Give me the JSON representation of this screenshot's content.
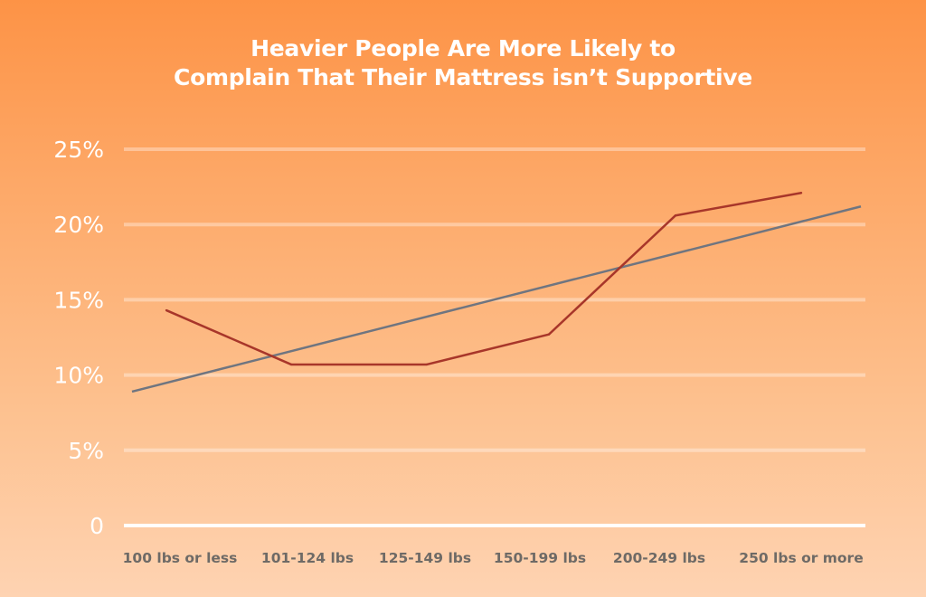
{
  "chart_data": {
    "type": "line",
    "title": "Heavier People Are More Likely to Complain That Their Mattress isn't Supportive",
    "title_lines": [
      "Heavier People Are More Likely to",
      "Complain That Their Mattress isn’t Supportive"
    ],
    "categories": [
      "100 lbs or less",
      "101-124 lbs",
      "125-149 lbs",
      "150-199 lbs",
      "200-249 lbs",
      "250 lbs or more"
    ],
    "series": [
      {
        "values": [
          14.3,
          10.7,
          10.7,
          12.7,
          20.6,
          22.1
        ],
        "color": "#a8362a"
      }
    ],
    "trendline": {
      "start": 8.9,
      "end": 21.2,
      "color": "#6f7580"
    },
    "ylim": [
      0,
      25
    ],
    "yticks": [
      0,
      5,
      10,
      15,
      20,
      25
    ],
    "ytick_labels": [
      "0",
      "5%",
      "10%",
      "15%",
      "20%",
      "25%"
    ],
    "xlabel": "",
    "ylabel": "",
    "grid": true,
    "colors": {
      "background_top": "#fd9346",
      "background_bottom": "#fed3b2",
      "text": "#ffffff",
      "xlabels": "#6e6a66"
    }
  }
}
